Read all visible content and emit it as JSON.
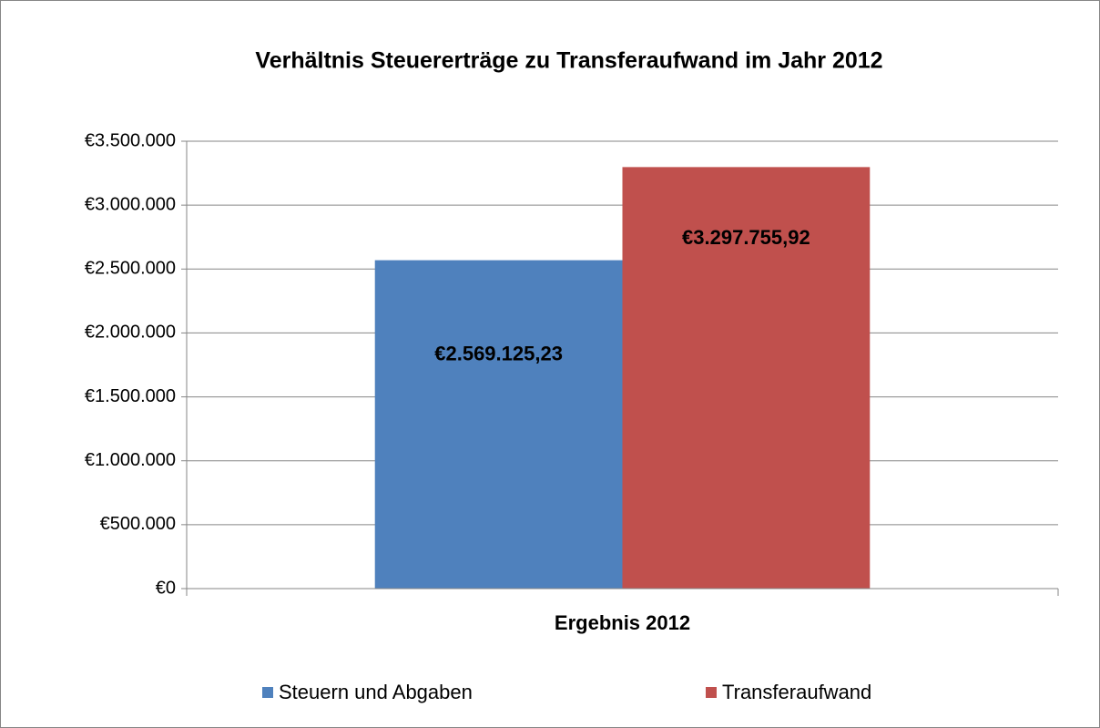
{
  "chart_data": {
    "type": "bar",
    "title": "Verhältnis Steuererträge zu Transferaufwand im Jahr 2012",
    "categories": [
      "Ergebnis 2012"
    ],
    "series": [
      {
        "name": "Steuern und Abgaben",
        "color": "#4f81bd",
        "values": [
          2569125.23
        ],
        "value_labels": [
          "€2.569.125,23"
        ]
      },
      {
        "name": "Transferaufwand",
        "color": "#c0504d",
        "values": [
          3297755.92
        ],
        "value_labels": [
          "€3.297.755,92"
        ]
      }
    ],
    "ylim": [
      0,
      3500000
    ],
    "yticks": [
      {
        "value": 0,
        "label": "€0"
      },
      {
        "value": 500000,
        "label": "€500.000"
      },
      {
        "value": 1000000,
        "label": "€1.000.000"
      },
      {
        "value": 1500000,
        "label": "€1.500.000"
      },
      {
        "value": 2000000,
        "label": "€2.000.000"
      },
      {
        "value": 2500000,
        "label": "€2.500.000"
      },
      {
        "value": 3000000,
        "label": "€3.000.000"
      },
      {
        "value": 3500000,
        "label": "€3.500.000"
      }
    ],
    "grid": true,
    "legend": "bottom"
  }
}
